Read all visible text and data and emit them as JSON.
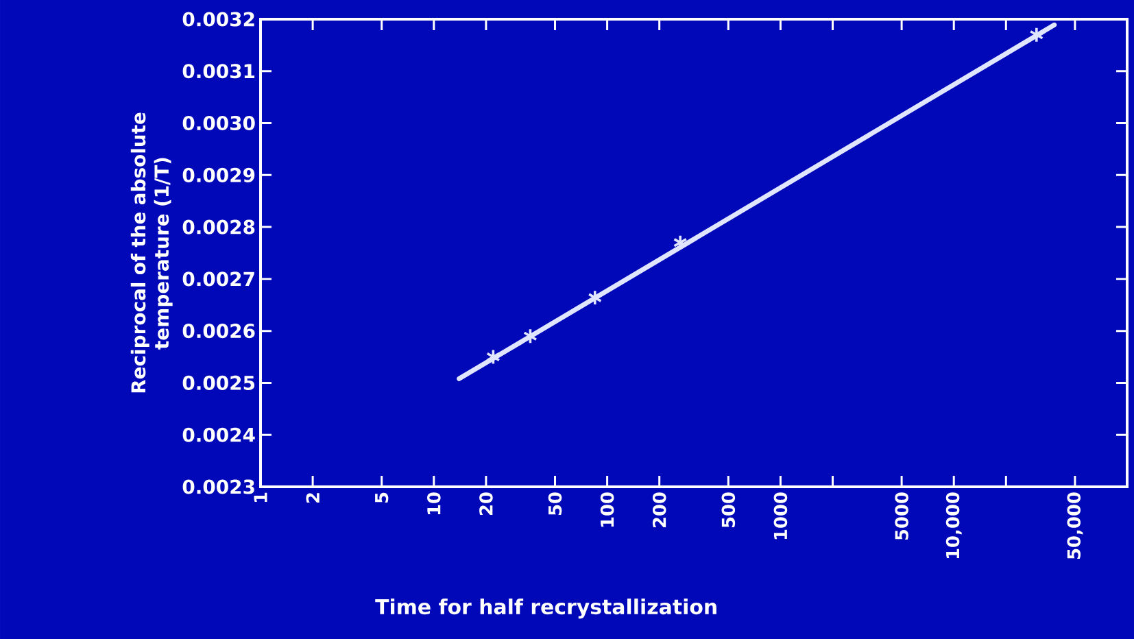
{
  "chart_data": {
    "type": "scatter",
    "xlabel": "Time for half recrystallization",
    "ylabel": "Reciprocal of the absolute temperature (1/T)",
    "log": "x",
    "grid": false,
    "xlim": [
      1,
      100000
    ],
    "ylim": [
      0.0023,
      0.0032
    ],
    "xticks": [
      1,
      2,
      5,
      10,
      20,
      50,
      100,
      200,
      500,
      1000,
      {
        "value": 2000,
        "label": null
      },
      5000,
      {
        "value": 10000,
        "label": "10,000"
      },
      {
        "value": 20000,
        "label": null
      },
      {
        "value": 50000,
        "label": "50,000"
      }
    ],
    "yticks": [
      {
        "value": 0.0023,
        "label": "0.0023"
      },
      {
        "value": 0.0024,
        "label": "0.0024"
      },
      {
        "value": 0.0025,
        "label": "0.0025"
      },
      {
        "value": 0.0026,
        "label": "0.0026"
      },
      {
        "value": 0.0027,
        "label": "0.0027"
      },
      {
        "value": 0.0028,
        "label": "0.0028"
      },
      {
        "value": 0.0029,
        "label": "0.0029"
      },
      {
        "value": 0.003,
        "label": "0.0030"
      },
      {
        "value": 0.0031,
        "label": "0.0031"
      },
      {
        "value": 0.0032,
        "label": "0.0032"
      }
    ],
    "series": [
      {
        "type": "line",
        "color": "#e0e6ff",
        "marker": "none",
        "line_style": "solid",
        "x": [
          14,
          38000
        ],
        "values": [
          0.002508,
          0.003189
        ]
      },
      {
        "type": "scatter",
        "color": "#e0e6ff",
        "marker": "cross",
        "x": [
          22,
          36,
          85,
          264,
          30000
        ],
        "values": [
          0.00255,
          0.00259,
          0.002664,
          0.00277,
          0.00317
        ]
      }
    ]
  }
}
